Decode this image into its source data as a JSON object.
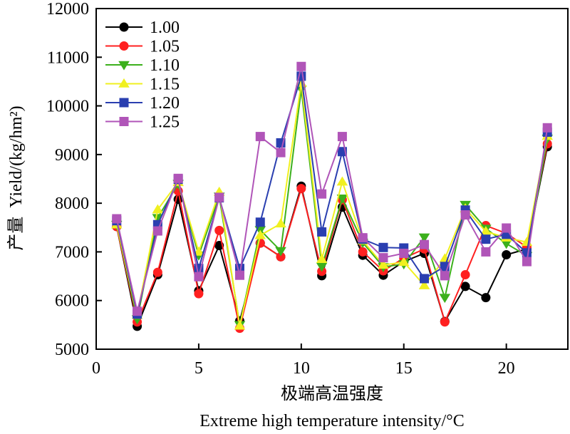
{
  "chart_data": {
    "type": "line",
    "xlabel_cn": "极端高温强度",
    "xlabel_en": "Extreme high temperature intensity/°C",
    "ylabel_cn": "产量",
    "ylabel_en": "Yield/(kg/hm²)",
    "xlim": [
      0,
      23
    ],
    "ylim": [
      5000,
      12000
    ],
    "xticks": [
      "0",
      "5",
      "10",
      "15",
      "20"
    ],
    "yticks": [
      "5000",
      "6000",
      "7000",
      "8000",
      "9000",
      "10000",
      "11000",
      "12000"
    ],
    "grid": false,
    "legend": "top-left",
    "x": [
      1,
      2,
      3,
      4,
      5,
      6,
      7,
      8,
      9,
      10,
      11,
      12,
      13,
      14,
      15,
      16,
      17,
      18,
      19,
      20,
      21,
      22
    ],
    "series": [
      {
        "name": "1.00",
        "color": "#000000",
        "marker": "circle",
        "values": [
          7520,
          5470,
          6530,
          8080,
          6200,
          7130,
          5580,
          7180,
          6900,
          8350,
          6510,
          7920,
          6930,
          6520,
          6800,
          6970,
          5570,
          6290,
          6060,
          6940,
          7060,
          9160
        ]
      },
      {
        "name": "1.05",
        "color": "#ff2020",
        "marker": "circle",
        "values": [
          7520,
          5560,
          6580,
          8250,
          6140,
          7440,
          5430,
          7180,
          6900,
          8300,
          6600,
          8070,
          7000,
          6610,
          6870,
          7060,
          5560,
          6530,
          7540,
          7380,
          7100,
          9220
        ]
      },
      {
        "name": "1.10",
        "color": "#3cb01c",
        "marker": "triangle-down",
        "values": [
          7560,
          5620,
          7700,
          8400,
          6930,
          8140,
          5500,
          7450,
          7020,
          10340,
          6700,
          8100,
          7190,
          6690,
          6750,
          7300,
          6060,
          7970,
          7480,
          7170,
          6920,
          9330
        ]
      },
      {
        "name": "1.15",
        "color": "#f0f020",
        "marker": "triangle-up",
        "values": [
          7560,
          5700,
          7870,
          8430,
          7000,
          8230,
          5480,
          7340,
          7580,
          10470,
          6850,
          8440,
          7230,
          6730,
          6790,
          6310,
          6860,
          7890,
          7420,
          7290,
          7200,
          9380
        ]
      },
      {
        "name": "1.20",
        "color": "#2a3fb0",
        "marker": "square",
        "values": [
          7640,
          5720,
          7560,
          8490,
          6660,
          8110,
          6660,
          7610,
          9240,
          10610,
          7410,
          9060,
          7260,
          7090,
          7080,
          6450,
          6700,
          7860,
          7260,
          7360,
          6980,
          9460
        ]
      },
      {
        "name": "1.25",
        "color": "#b055b8",
        "marker": "square",
        "values": [
          7680,
          5780,
          7430,
          8510,
          6490,
          8120,
          6520,
          9370,
          9040,
          10810,
          8190,
          9370,
          7290,
          6880,
          6970,
          7150,
          6510,
          7760,
          7000,
          7490,
          6800,
          9550
        ]
      }
    ]
  }
}
